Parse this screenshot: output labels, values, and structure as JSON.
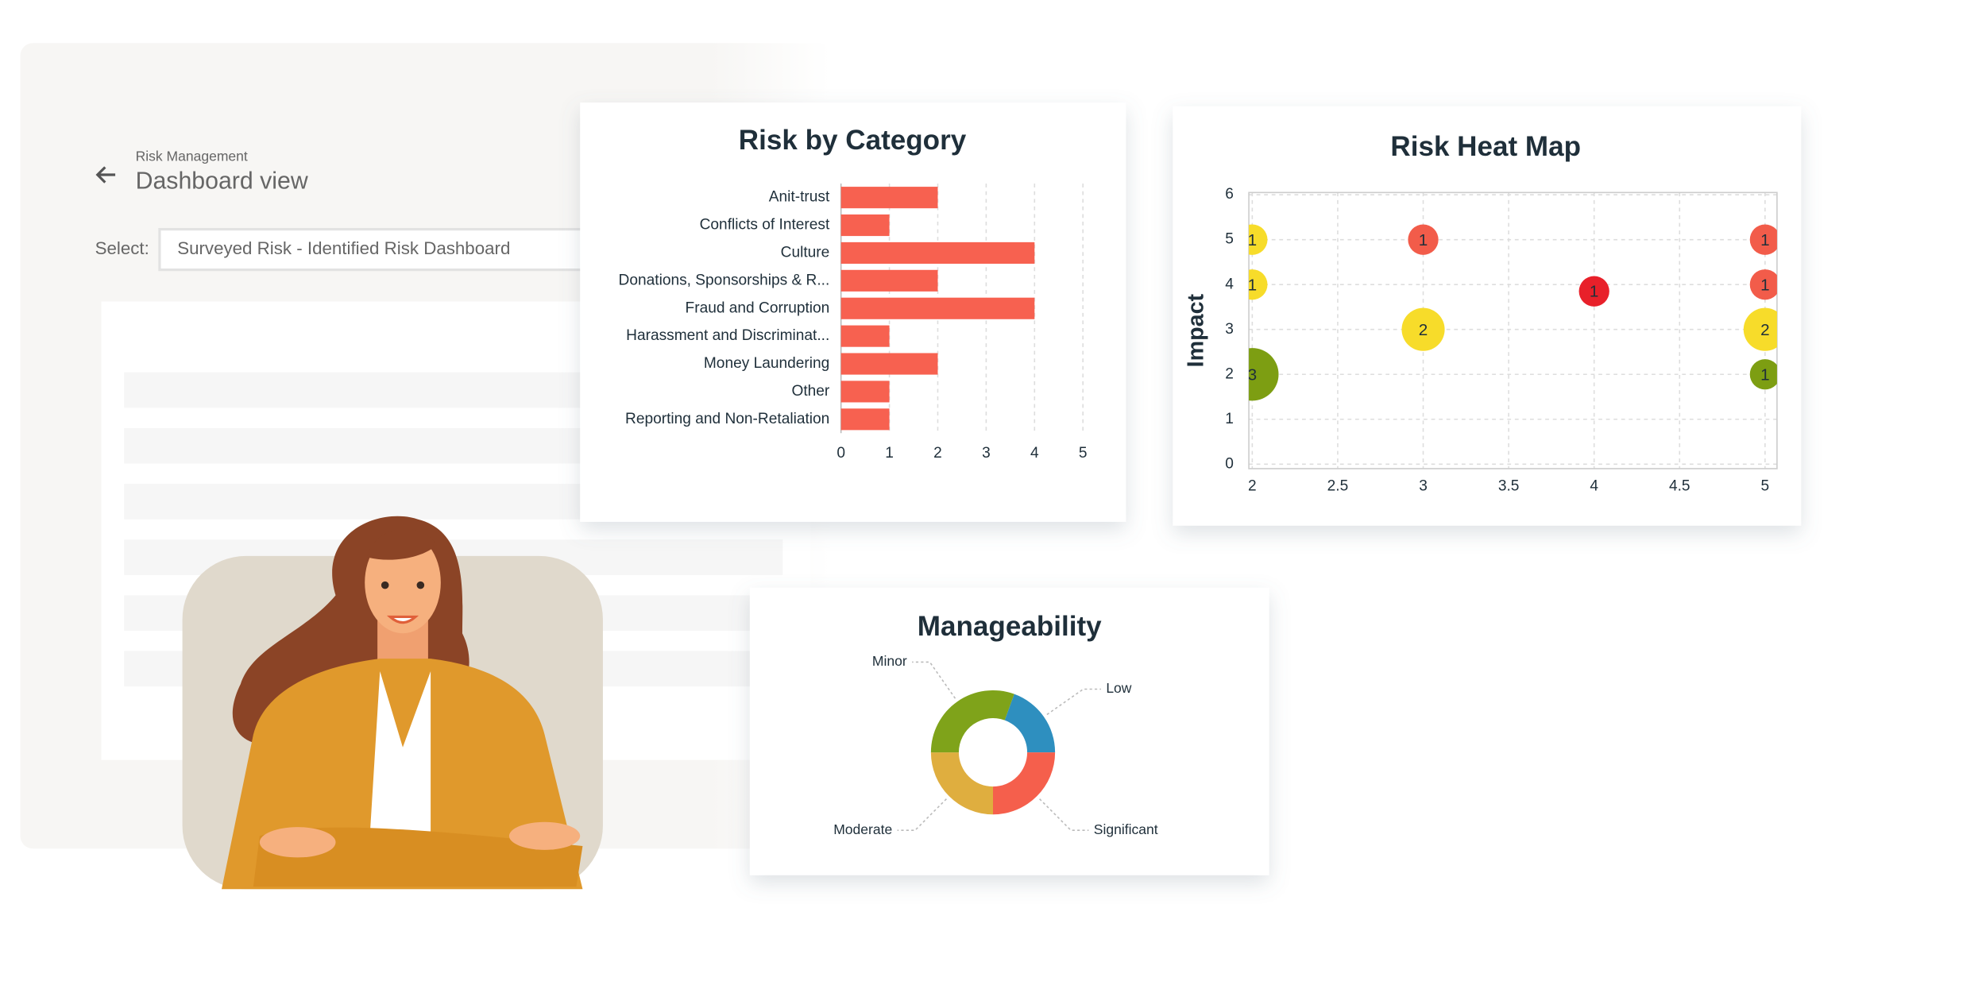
{
  "header": {
    "breadcrumb": "Risk Management",
    "title": "Dashboard view",
    "select_label": "Select:",
    "select_value": "Surveyed Risk - Identified Risk Dashboard"
  },
  "chart_data": [
    {
      "type": "bar",
      "orientation": "horizontal",
      "title": "Risk by Category",
      "categories": [
        "Anit-trust",
        "Conflicts of Interest",
        "Culture",
        "Donations, Sponsorships & R...",
        "Fraud and Corruption",
        "Harassment and Discriminat...",
        "Money Laundering",
        "Other",
        "Reporting and Non-Retaliation"
      ],
      "values": [
        2,
        1,
        4,
        2,
        4,
        1,
        2,
        1,
        1
      ],
      "color": "#f76150",
      "xlim": [
        0,
        5
      ],
      "xticks": [
        0,
        1,
        2,
        3,
        4,
        5
      ],
      "grid": true
    },
    {
      "type": "scatter",
      "title": "Risk Heat Map",
      "ylabel": "Impact",
      "x": [
        2,
        3,
        5,
        2,
        4,
        5,
        3,
        5,
        2,
        5
      ],
      "y": [
        5,
        5,
        5,
        4,
        3.85,
        4,
        3,
        3,
        2,
        2
      ],
      "sizes": [
        1,
        1,
        1,
        1,
        1,
        1,
        2,
        2,
        3,
        1
      ],
      "colors": [
        "#f7dc2a",
        "#f25c4a",
        "#f25c4a",
        "#f7dc2a",
        "#e8202a",
        "#f25c4a",
        "#f7dc2a",
        "#f7dc2a",
        "#7d9e12",
        "#7d9e12"
      ],
      "xlim": [
        1.98,
        5.07
      ],
      "ylim": [
        -0.1,
        6.05
      ],
      "xticks": [
        2,
        2.5,
        3,
        3.5,
        4,
        4.5,
        5
      ],
      "yticks": [
        0,
        1,
        2,
        3,
        4,
        5,
        6
      ],
      "grid": true
    },
    {
      "type": "pie",
      "donut": true,
      "title": "Manageability",
      "categories": [
        "Low",
        "Significant",
        "Moderate",
        "Minor"
      ],
      "values": [
        7,
        9,
        9,
        11
      ],
      "colors": [
        "#2e8fbf",
        "#f55f4c",
        "#dfae3f",
        "#7fa31a"
      ],
      "startangle": 20
    }
  ]
}
